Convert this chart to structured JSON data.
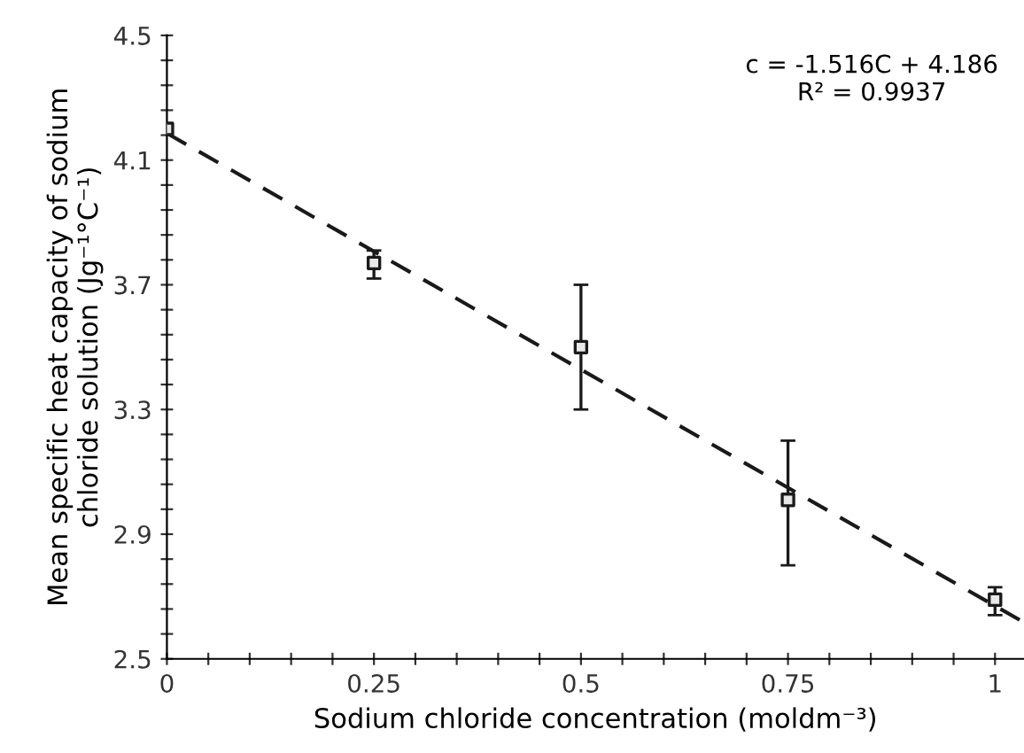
{
  "chart_data": {
    "type": "scatter",
    "xlabel": "Sodium chloride concentration (moldm⁻³)",
    "ylabel": "Mean specific heat capacity of sodium\nchloride solution (Jg⁻¹°C⁻¹)",
    "annotations": [
      "c = -1.516C + 4.186\nR² = 0.9937"
    ],
    "series": [
      {
        "color": "#1a1a1a",
        "x": [
          0,
          0.25,
          0.5,
          0.75,
          1
        ],
        "values": [
          4.2,
          3.77,
          3.5,
          3.01,
          2.69
        ],
        "errors": [
          null,
          [
            3.72,
            3.81
          ],
          [
            3.3,
            3.7
          ],
          [
            2.8,
            3.2
          ],
          [
            2.64,
            2.73
          ]
        ],
        "marker": "square"
      },
      {
        "type": "line",
        "color": "#1a1a1a",
        "x": [
          0,
          1.035
        ],
        "values": [
          4.186,
          2.617
        ],
        "line_style": "dashed",
        "marker": "none"
      }
    ],
    "xlim": [
      0,
      1.035
    ],
    "ylim": [
      2.5,
      4.5
    ],
    "xticks": [
      0,
      {
        "value": 0.05,
        "label": null
      },
      {
        "value": 0.1,
        "label": null
      },
      {
        "value": 0.15,
        "label": null
      },
      {
        "value": 0.2,
        "label": null
      },
      0.25,
      {
        "value": 0.3,
        "label": null
      },
      {
        "value": 0.35,
        "label": null
      },
      {
        "value": 0.4,
        "label": null
      },
      {
        "value": 0.45,
        "label": null
      },
      0.5,
      {
        "value": 0.55,
        "label": null
      },
      {
        "value": 0.6,
        "label": null
      },
      {
        "value": 0.65,
        "label": null
      },
      {
        "value": 0.7,
        "label": null
      },
      0.75,
      {
        "value": 0.8,
        "label": null
      },
      {
        "value": 0.85,
        "label": null
      },
      {
        "value": 0.9,
        "label": null
      },
      {
        "value": 0.95,
        "label": null
      },
      1
    ],
    "yticks": [
      2.5,
      {
        "value": 2.58,
        "label": null
      },
      {
        "value": 2.66,
        "label": null
      },
      {
        "value": 2.74,
        "label": null
      },
      {
        "value": 2.82,
        "label": null
      },
      2.9,
      {
        "value": 2.98,
        "label": null
      },
      {
        "value": 3.06,
        "label": null
      },
      {
        "value": 3.14,
        "label": null
      },
      {
        "value": 3.22,
        "label": null
      },
      3.3,
      {
        "value": 3.38,
        "label": null
      },
      {
        "value": 3.46,
        "label": null
      },
      {
        "value": 3.54,
        "label": null
      },
      {
        "value": 3.62,
        "label": null
      },
      3.7,
      {
        "value": 3.78,
        "label": null
      },
      {
        "value": 3.86,
        "label": null
      },
      {
        "value": 3.94,
        "label": null
      },
      {
        "value": 4.02,
        "label": null
      },
      4.1,
      {
        "value": 4.18,
        "label": null
      },
      {
        "value": 4.26,
        "label": null
      },
      {
        "value": 4.34,
        "label": null
      },
      {
        "value": 4.42,
        "label": null
      },
      4.5
    ],
    "grid": false,
    "legend": false
  }
}
